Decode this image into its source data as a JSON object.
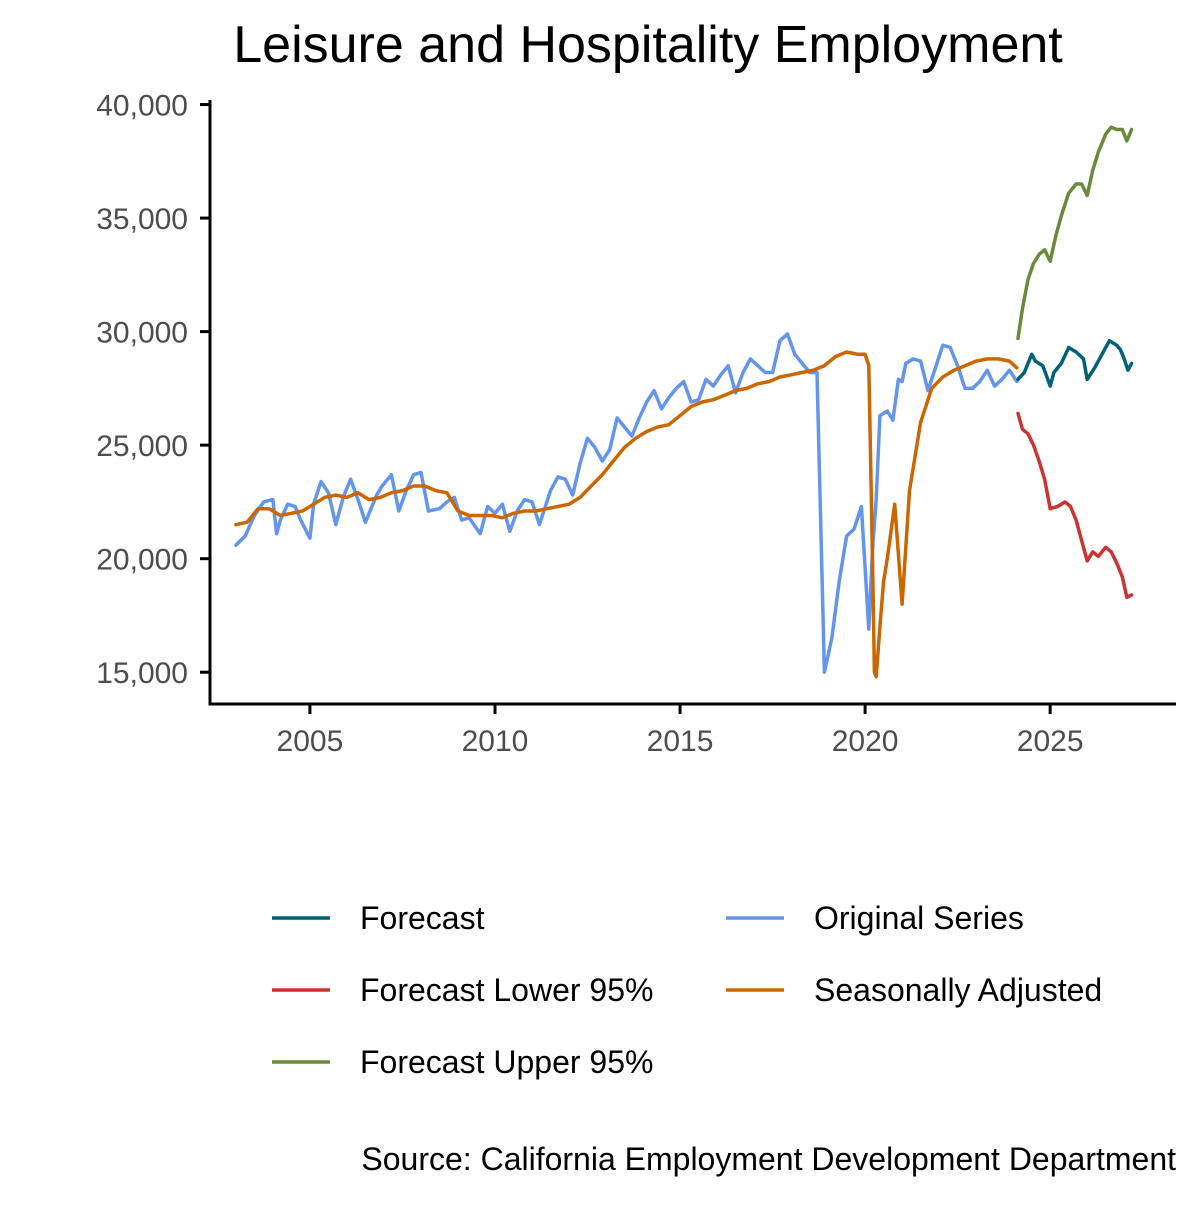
{
  "chart_data": {
    "type": "line",
    "title": "Leisure and Hospitality Employment",
    "xlabel": "",
    "ylabel": "",
    "caption": "Source: California Employment Development Department",
    "xlim": [
      2002.3,
      2028.4
    ],
    "ylim": [
      13600,
      40200
    ],
    "x_ticks": [
      2005,
      2010,
      2015,
      2020,
      2025
    ],
    "x_tick_labels": [
      "2005",
      "2010",
      "2015",
      "2020",
      "2025"
    ],
    "y_ticks": [
      15000,
      20000,
      25000,
      30000,
      35000,
      40000
    ],
    "y_tick_labels": [
      "15,000",
      "20,000",
      "25,000",
      "30,000",
      "35,000",
      "40,000"
    ],
    "grid": false,
    "legend_position": "bottom",
    "series": [
      {
        "name": "Forecast",
        "color": "#00607a",
        "x": [
          2024.13,
          2024.3,
          2024.5,
          2024.6,
          2024.8,
          2025.0,
          2025.1,
          2025.3,
          2025.5,
          2025.7,
          2025.9,
          2026.0,
          2026.2,
          2026.4,
          2026.6,
          2026.8,
          2026.9,
          2027.0,
          2027.1,
          2027.2
        ],
        "values": [
          27900,
          28200,
          29000,
          28700,
          28500,
          27600,
          28200,
          28600,
          29300,
          29100,
          28800,
          27900,
          28400,
          29000,
          29600,
          29400,
          29200,
          28800,
          28300,
          28600
        ]
      },
      {
        "name": "Forecast Lower 95%",
        "color": "#cc3333",
        "x": [
          2024.13,
          2024.25,
          2024.4,
          2024.55,
          2024.7,
          2024.85,
          2025.0,
          2025.2,
          2025.4,
          2025.55,
          2025.7,
          2025.85,
          2026.0,
          2026.15,
          2026.3,
          2026.5,
          2026.65,
          2026.8,
          2026.95,
          2027.07,
          2027.2
        ],
        "values": [
          26400,
          25700,
          25500,
          25000,
          24300,
          23500,
          22200,
          22300,
          22500,
          22300,
          21700,
          20800,
          19900,
          20300,
          20100,
          20500,
          20300,
          19800,
          19200,
          18300,
          18400
        ]
      },
      {
        "name": "Forecast Upper 95%",
        "color": "#6a8a3a",
        "x": [
          2024.13,
          2024.25,
          2024.4,
          2024.55,
          2024.7,
          2024.85,
          2025.0,
          2025.15,
          2025.3,
          2025.5,
          2025.7,
          2025.85,
          2026.0,
          2026.15,
          2026.3,
          2026.5,
          2026.65,
          2026.8,
          2026.95,
          2027.07,
          2027.2
        ],
        "values": [
          29700,
          31000,
          32300,
          33000,
          33400,
          33600,
          33100,
          34200,
          35100,
          36100,
          36500,
          36500,
          36000,
          37100,
          37900,
          38700,
          39000,
          38900,
          38900,
          38400,
          38900
        ]
      },
      {
        "name": "Original Series",
        "color": "#6495ed",
        "x": [
          2003.0,
          2003.25,
          2003.5,
          2003.75,
          2004.0,
          2004.1,
          2004.2,
          2004.4,
          2004.6,
          2004.75,
          2005.0,
          2005.1,
          2005.3,
          2005.5,
          2005.7,
          2005.9,
          2006.1,
          2006.3,
          2006.5,
          2006.8,
          2006.95,
          2007.2,
          2007.4,
          2007.6,
          2007.8,
          2008.0,
          2008.2,
          2008.5,
          2008.7,
          2008.9,
          2009.1,
          2009.3,
          2009.6,
          2009.8,
          2010.0,
          2010.2,
          2010.4,
          2010.6,
          2010.8,
          2011.0,
          2011.2,
          2011.5,
          2011.7,
          2011.9,
          2012.1,
          2012.3,
          2012.5,
          2012.7,
          2012.9,
          2013.1,
          2013.3,
          2013.5,
          2013.7,
          2013.9,
          2014.1,
          2014.3,
          2014.5,
          2014.7,
          2014.9,
          2015.1,
          2015.3,
          2015.5,
          2015.7,
          2015.9,
          2016.1,
          2016.3,
          2016.5,
          2016.7,
          2016.9,
          2017.1,
          2017.3,
          2017.5,
          2017.7,
          2017.9,
          2018.1,
          2018.3,
          2018.5,
          2018.7,
          2018.9,
          2019.1,
          2019.3,
          2019.5,
          2019.7,
          2019.9,
          2020.1,
          2020.2,
          2020.3,
          2020.4,
          2020.6,
          2020.75,
          2020.9,
          2021.0,
          2021.1,
          2021.3,
          2021.5,
          2021.7,
          2021.9,
          2022.1,
          2022.3,
          2022.5,
          2022.7,
          2022.9,
          2023.1,
          2023.3,
          2023.5,
          2023.7,
          2023.9,
          2024.1
        ],
        "values": [
          20600,
          21000,
          21900,
          22500,
          22600,
          21100,
          21700,
          22400,
          22300,
          21700,
          20900,
          22400,
          23400,
          22900,
          21500,
          22700,
          23500,
          22600,
          21600,
          22800,
          23200,
          23700,
          22100,
          23000,
          23700,
          23800,
          22100,
          22200,
          22500,
          22700,
          21700,
          21800,
          21100,
          22300,
          22000,
          22400,
          21200,
          22100,
          22600,
          22500,
          21500,
          23000,
          23600,
          23500,
          22800,
          24200,
          25300,
          24900,
          24300,
          24800,
          26200,
          25800,
          25400,
          26200,
          26900,
          27400,
          26600,
          27100,
          27500,
          27800,
          26900,
          27000,
          27900,
          27600,
          28100,
          28500,
          27300,
          28200,
          28800,
          28500,
          28200,
          28200,
          29600,
          29900,
          29000,
          28600,
          28200,
          28200,
          15000,
          16500,
          19000,
          21000,
          21300,
          22300,
          16900,
          20400,
          22600,
          26300,
          26500,
          26100,
          27900,
          27800,
          28600,
          28800,
          28700,
          27400,
          28400,
          29400,
          29300,
          28500,
          27500,
          27500,
          27800,
          28300,
          27600,
          27900,
          28300,
          27800
        ]
      },
      {
        "name": "Seasonally Adjusted",
        "color": "#cc6600",
        "x": [
          2003.0,
          2003.3,
          2003.6,
          2003.9,
          2004.2,
          2004.5,
          2004.8,
          2005.1,
          2005.4,
          2005.7,
          2006.0,
          2006.3,
          2006.6,
          2006.9,
          2007.2,
          2007.5,
          2007.8,
          2008.1,
          2008.4,
          2008.7,
          2009.0,
          2009.3,
          2009.6,
          2009.9,
          2010.2,
          2010.5,
          2010.8,
          2011.1,
          2011.4,
          2011.7,
          2012.0,
          2012.3,
          2012.6,
          2012.9,
          2013.2,
          2013.5,
          2013.8,
          2014.1,
          2014.4,
          2014.7,
          2015.0,
          2015.3,
          2015.6,
          2015.9,
          2016.2,
          2016.5,
          2016.8,
          2017.1,
          2017.4,
          2017.7,
          2018.0,
          2018.3,
          2018.6,
          2018.9,
          2019.2,
          2019.5,
          2019.8,
          2020.0,
          2020.1,
          2020.2,
          2020.25,
          2020.3,
          2020.4,
          2020.5,
          2020.6,
          2020.8,
          2021.0,
          2021.2,
          2021.5,
          2021.8,
          2022.1,
          2022.4,
          2022.7,
          2023.0,
          2023.3,
          2023.6,
          2023.9,
          2024.1
        ],
        "values": [
          21500,
          21600,
          22200,
          22200,
          21900,
          22000,
          22100,
          22400,
          22700,
          22800,
          22700,
          22900,
          22600,
          22700,
          22900,
          23000,
          23200,
          23200,
          23000,
          22900,
          22100,
          21900,
          21900,
          21900,
          21800,
          22000,
          22100,
          22100,
          22200,
          22300,
          22400,
          22700,
          23200,
          23700,
          24300,
          24900,
          25300,
          25600,
          25800,
          25900,
          26300,
          26700,
          26900,
          27000,
          27200,
          27400,
          27500,
          27700,
          27800,
          28000,
          28100,
          28200,
          28300,
          28500,
          28900,
          29100,
          29000,
          29000,
          28500,
          20000,
          15000,
          14800,
          17000,
          19000,
          20000,
          22400,
          18000,
          23000,
          26000,
          27500,
          28000,
          28300,
          28500,
          28700,
          28800,
          28800,
          28700,
          28400
        ]
      }
    ]
  }
}
